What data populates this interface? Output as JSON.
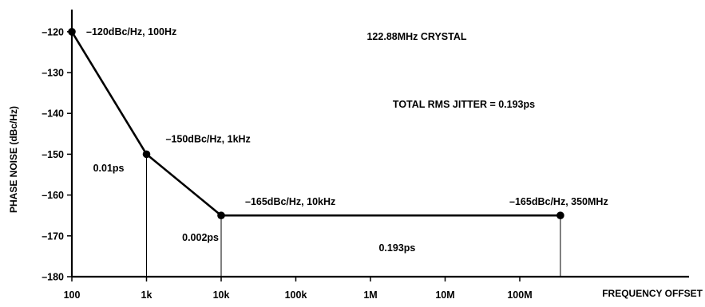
{
  "chart_data": {
    "type": "line",
    "title": "",
    "xlabel": "FREQUENCY OFFSET",
    "ylabel": "PHASE NOISE (dBc/Hz)",
    "x_scale": "log",
    "xlim": [
      100,
      350000000
    ],
    "ylim": [
      -180,
      -115
    ],
    "x_ticks": [
      {
        "value": 100,
        "label": "100"
      },
      {
        "value": 1000,
        "label": "1k"
      },
      {
        "value": 10000,
        "label": "10k"
      },
      {
        "value": 100000,
        "label": "100k"
      },
      {
        "value": 1000000,
        "label": "1M"
      },
      {
        "value": 10000000,
        "label": "10M"
      },
      {
        "value": 100000000,
        "label": "100M"
      }
    ],
    "y_ticks": [
      {
        "value": -120,
        "label": "–120"
      },
      {
        "value": -130,
        "label": "–130"
      },
      {
        "value": -140,
        "label": "–140"
      },
      {
        "value": -150,
        "label": "–150"
      },
      {
        "value": -160,
        "label": "–160"
      },
      {
        "value": -170,
        "label": "–170"
      },
      {
        "value": -180,
        "label": "–180"
      }
    ],
    "grid": false,
    "series": [
      {
        "color": "#000000",
        "x": [
          100,
          1000,
          10000,
          350000000
        ],
        "y": [
          -120,
          -150,
          -165,
          -165
        ]
      }
    ],
    "point_labels": [
      "–120dBc/Hz, 100Hz",
      "–150dBc/Hz, 1kHz",
      "–165dBc/Hz, 10kHz",
      "–165dBc/Hz, 350MHz"
    ],
    "region_labels": [
      {
        "text": "0.01ps",
        "x_from": 100,
        "x_to": 1000
      },
      {
        "text": "0.002ps",
        "x_from": 1000,
        "x_to": 10000
      },
      {
        "text": "0.193ps",
        "x_from": 10000,
        "x_to": 350000000
      }
    ],
    "annotations": [
      "122.88MHz CRYSTAL",
      "TOTAL RMS JITTER = 0.193ps"
    ]
  }
}
